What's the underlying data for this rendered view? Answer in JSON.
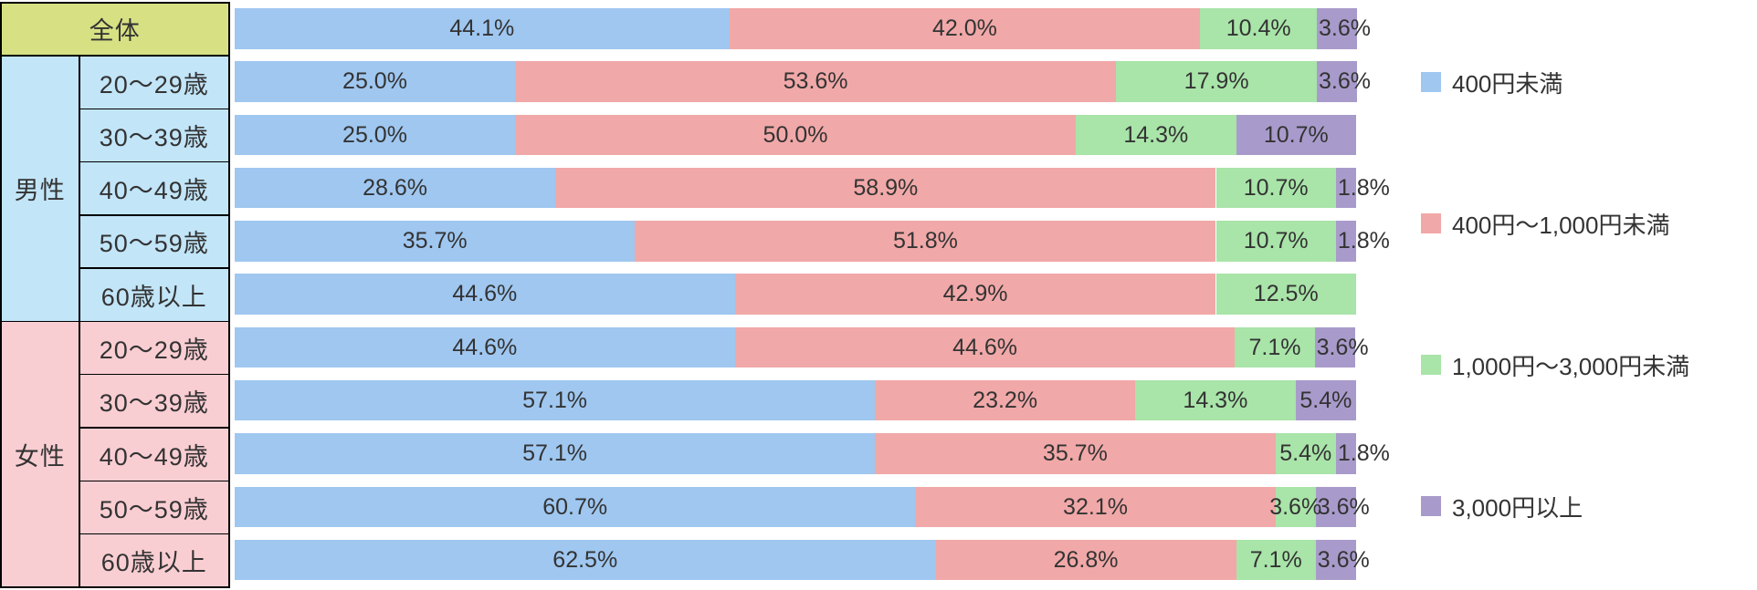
{
  "chart_data": {
    "type": "bar",
    "orientation": "horizontal",
    "stacked": true,
    "unit": "%",
    "xlim": [
      0,
      100
    ],
    "grid": false,
    "legend_position": "right",
    "series_names": [
      "400円未満",
      "400円〜1,000円未満",
      "1,000円〜3,000円未満",
      "3,000円以上"
    ],
    "categories": {
      "overall": "全体",
      "groups": [
        {
          "label": "男性",
          "ages": [
            "20〜29歳",
            "30〜39歳",
            "40〜49歳",
            "50〜59歳",
            "60歳以上"
          ]
        },
        {
          "label": "女性",
          "ages": [
            "20〜29歳",
            "30〜39歳",
            "40〜49歳",
            "50〜59歳",
            "60歳以上"
          ]
        }
      ]
    },
    "rows": [
      {
        "group": "全体",
        "category": "全体",
        "segments": [
          {
            "value": 44.1,
            "label": "44.1%"
          },
          {
            "value": 42.0,
            "label": "42.0%"
          },
          {
            "value": 10.4,
            "label": "10.4%"
          },
          {
            "value": 3.6,
            "label": "3.6%"
          }
        ]
      },
      {
        "group": "男性",
        "category": "20〜29歳",
        "segments": [
          {
            "value": 25.0,
            "label": "25.0%"
          },
          {
            "value": 53.6,
            "label": "53.6%"
          },
          {
            "value": 17.9,
            "label": "17.9%"
          },
          {
            "value": 3.6,
            "label": "3.6%"
          }
        ]
      },
      {
        "group": "男性",
        "category": "30〜39歳",
        "segments": [
          {
            "value": 25.0,
            "label": "25.0%"
          },
          {
            "value": 50.0,
            "label": "50.0%"
          },
          {
            "value": 14.3,
            "label": "14.3%"
          },
          {
            "value": 10.7,
            "label": "10.7%"
          }
        ]
      },
      {
        "group": "男性",
        "category": "40〜49歳",
        "segments": [
          {
            "value": 28.6,
            "label": "28.6%"
          },
          {
            "value": 58.9,
            "label": "58.9%"
          },
          {
            "value": 10.7,
            "label": "10.7%"
          },
          {
            "value": 1.8,
            "label": "1.8%"
          }
        ]
      },
      {
        "group": "男性",
        "category": "50〜59歳",
        "segments": [
          {
            "value": 35.7,
            "label": "35.7%"
          },
          {
            "value": 51.8,
            "label": "51.8%"
          },
          {
            "value": 10.7,
            "label": "10.7%"
          },
          {
            "value": 1.8,
            "label": "1.8%"
          }
        ]
      },
      {
        "group": "男性",
        "category": "60歳以上",
        "segments": [
          {
            "value": 44.6,
            "label": "44.6%"
          },
          {
            "value": 42.9,
            "label": "42.9%"
          },
          {
            "value": 12.5,
            "label": "12.5%"
          }
        ]
      },
      {
        "group": "女性",
        "category": "20〜29歳",
        "segments": [
          {
            "value": 44.6,
            "label": "44.6%"
          },
          {
            "value": 44.6,
            "label": "44.6%"
          },
          {
            "value": 7.1,
            "label": "7.1%"
          },
          {
            "value": 3.6,
            "label": "3.6%"
          }
        ]
      },
      {
        "group": "女性",
        "category": "30〜39歳",
        "segments": [
          {
            "value": 57.1,
            "label": "57.1%"
          },
          {
            "value": 23.2,
            "label": "23.2%"
          },
          {
            "value": 14.3,
            "label": "14.3%"
          },
          {
            "value": 5.4,
            "label": "5.4%"
          }
        ]
      },
      {
        "group": "女性",
        "category": "40〜49歳",
        "segments": [
          {
            "value": 57.1,
            "label": "57.1%"
          },
          {
            "value": 35.7,
            "label": "35.7%"
          },
          {
            "value": 5.4,
            "label": "5.4%"
          },
          {
            "value": 1.8,
            "label": "1.8%"
          }
        ]
      },
      {
        "group": "女性",
        "category": "50〜59歳",
        "segments": [
          {
            "value": 60.7,
            "label": "60.7%"
          },
          {
            "value": 32.1,
            "label": "32.1%"
          },
          {
            "value": 3.6,
            "label": "3.6%"
          },
          {
            "value": 3.6,
            "label": "3.6%"
          }
        ]
      },
      {
        "group": "女性",
        "category": "60歳以上",
        "segments": [
          {
            "value": 62.5,
            "label": "62.5%"
          },
          {
            "value": 26.8,
            "label": "26.8%"
          },
          {
            "value": 7.1,
            "label": "7.1%"
          },
          {
            "value": 3.6,
            "label": "3.6%"
          }
        ]
      }
    ]
  },
  "legend": {
    "items": [
      {
        "label": "400円未満",
        "color": "#9fc7f0"
      },
      {
        "label": "400円〜1,000円未満",
        "color": "#f1a8a8"
      },
      {
        "label": "1,000円〜3,000円未満",
        "color": "#a9e4a9"
      },
      {
        "label": "3,000円以上",
        "color": "#a89bcb"
      }
    ]
  },
  "colors": {
    "series": [
      "#9fc7f0",
      "#f1a8a8",
      "#a9e4a9",
      "#a89bcb"
    ],
    "overall_bg": "#d7e183",
    "male_bg": "#c2e5f8",
    "female_bg": "#f9ced3",
    "border": "#000000",
    "text": "#333333",
    "background": "#ffffff"
  }
}
